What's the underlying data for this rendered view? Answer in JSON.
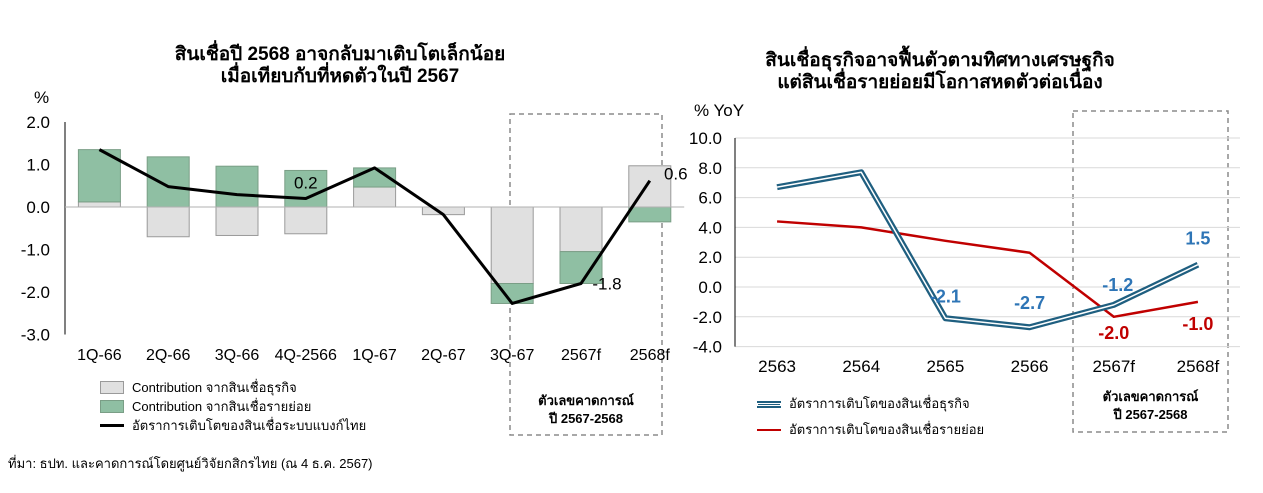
{
  "left": {
    "title_line1": "สินเชื่อปี 2568 อาจกลับมาเติบโตเล็กน้อย",
    "title_line2": "เมื่อเทียบกับที่หดตัวในปี 2567",
    "unit": "%",
    "legend": [
      "Contribution จากสินเชื่อธุรกิจ",
      "Contribution จากสินเชื่อรายย่อย",
      "อัตราการเติบโตของสินเชื่อระบบแบงก์ไทย"
    ],
    "forecast_label_line1": "ตัวเลขคาดการณ์",
    "forecast_label_line2": "ปี 2567-2568"
  },
  "right": {
    "title_line1": "สินเชื่อธุรกิจอาจฟื้นตัวตามทิศทางเศรษฐกิจ",
    "title_line2": "แต่สินเชื่อรายย่อยมีโอกาสหดตัวต่อเนื่อง",
    "unit": "% YoY",
    "legend": [
      "อัตราการเติบโตของสินเชื่อธุรกิจ",
      "อัตราการเติบโตของสินเชื่อรายย่อย"
    ],
    "forecast_label_line1": "ตัวเลขคาดการณ์",
    "forecast_label_line2": "ปี 2567-2568"
  },
  "source": "ที่มา: ธปท. และคาดการณ์โดยศูนย์วิจัยกสิกรไทย (ณ 4 ธ.ค. 2567)",
  "colors": {
    "business": "#e0e0e0",
    "retail": "#8fbfa3",
    "total_line": "#000000",
    "business_line": "#1f5f80",
    "retail_line": "#c00000",
    "blue_label": "#2e75b6",
    "red_label": "#c00000"
  },
  "chart_data": [
    {
      "type": "bar",
      "stacked": true,
      "categories": [
        "1Q-66",
        "2Q-66",
        "3Q-66",
        "4Q-2566",
        "1Q-67",
        "2Q-67",
        "3Q-67",
        "2567f",
        "2568f"
      ],
      "series": [
        {
          "name": "Contribution จากสินเชื่อธุรกิจ",
          "values": [
            0.12,
            -0.7,
            -0.67,
            -0.63,
            0.47,
            -0.18,
            -1.8,
            -1.05,
            0.97
          ]
        },
        {
          "name": "Contribution จากสินเชื่อรายย่อย",
          "values": [
            1.23,
            1.18,
            0.96,
            0.86,
            0.45,
            0.0,
            -0.47,
            -0.75,
            -0.35
          ]
        },
        {
          "name": "อัตราการเติบโตของสินเชื่อระบบแบงก์ไทย",
          "type": "line",
          "values": [
            1.35,
            0.48,
            0.29,
            0.2,
            0.92,
            -0.18,
            -2.27,
            -1.8,
            0.62
          ]
        }
      ],
      "data_labels": [
        {
          "category": "4Q-2566",
          "text": "0.2"
        },
        {
          "category": "2567f",
          "text": "-1.8"
        },
        {
          "category": "2568f",
          "text": "0.6"
        }
      ],
      "ylim": [
        -3.0,
        2.0
      ],
      "yticks": [
        "2.0",
        "1.0",
        "0.0",
        "-1.0",
        "-2.0",
        "-3.0"
      ],
      "ylabel": "%",
      "grid": false,
      "legend_position": "bottom-left"
    },
    {
      "type": "line",
      "categories": [
        "2563",
        "2564",
        "2565",
        "2566",
        "2567f",
        "2568f"
      ],
      "series": [
        {
          "name": "อัตราการเติบโตของสินเชื่อธุรกิจ",
          "values": [
            6.7,
            7.7,
            -2.1,
            -2.7,
            -1.2,
            1.5
          ]
        },
        {
          "name": "อัตราการเติบโตของสินเชื่อรายย่อย",
          "values": [
            4.4,
            4.0,
            3.1,
            2.3,
            -2.0,
            -1.0
          ]
        }
      ],
      "data_labels": [
        {
          "series": 0,
          "category": "2565",
          "text": "-2.1"
        },
        {
          "series": 0,
          "category": "2566",
          "text": "-2.7"
        },
        {
          "series": 0,
          "category": "2567f",
          "text": "-1.2"
        },
        {
          "series": 0,
          "category": "2568f",
          "text": "1.5"
        },
        {
          "series": 1,
          "category": "2567f",
          "text": "-2.0"
        },
        {
          "series": 1,
          "category": "2568f",
          "text": "-1.0"
        }
      ],
      "ylim": [
        -4.0,
        10.0
      ],
      "yticks": [
        "10.0",
        "8.0",
        "6.0",
        "4.0",
        "2.0",
        "0.0",
        "-2.0",
        "-4.0"
      ],
      "ylabel": "% YoY",
      "grid": true,
      "legend_position": "bottom-left"
    }
  ]
}
